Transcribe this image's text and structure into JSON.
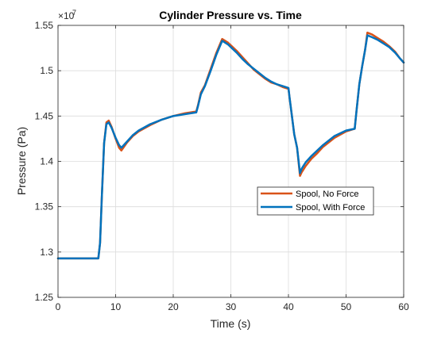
{
  "chart_data": {
    "type": "line",
    "title": "Cylinder Pressure vs. Time",
    "xlabel": "Time (s)",
    "ylabel": "Pressure (Pa)",
    "xlim": [
      0,
      60
    ],
    "ylim": [
      1.25,
      1.55
    ],
    "y_exponent_label": "×10",
    "y_exponent": "7",
    "x_ticks": [
      0,
      10,
      20,
      30,
      40,
      50,
      60
    ],
    "x_tick_labels": [
      "0",
      "10",
      "20",
      "30",
      "40",
      "50",
      "60"
    ],
    "y_ticks": [
      1.25,
      1.3,
      1.35,
      1.4,
      1.45,
      1.5,
      1.55
    ],
    "y_tick_labels": [
      "1.25",
      "1.3",
      "1.35",
      "1.4",
      "1.45",
      "1.5",
      "1.55"
    ],
    "grid": true,
    "legend_position": "lower-right",
    "series": [
      {
        "name": "Spool, No Force",
        "color": "#D95319",
        "points": [
          [
            0,
            1.293
          ],
          [
            2,
            1.293
          ],
          [
            4,
            1.293
          ],
          [
            6,
            1.293
          ],
          [
            7,
            1.293
          ],
          [
            7.3,
            1.31
          ],
          [
            7.6,
            1.36
          ],
          [
            8,
            1.42
          ],
          [
            8.4,
            1.443
          ],
          [
            8.8,
            1.445
          ],
          [
            9.3,
            1.438
          ],
          [
            10,
            1.425
          ],
          [
            10.6,
            1.415
          ],
          [
            11,
            1.412
          ],
          [
            12,
            1.421
          ],
          [
            13,
            1.428
          ],
          [
            14,
            1.433
          ],
          [
            16,
            1.44
          ],
          [
            18,
            1.446
          ],
          [
            20,
            1.45
          ],
          [
            22,
            1.453
          ],
          [
            24,
            1.455
          ],
          [
            24.3,
            1.462
          ],
          [
            24.8,
            1.476
          ],
          [
            25.5,
            1.484
          ],
          [
            26.5,
            1.502
          ],
          [
            27.5,
            1.52
          ],
          [
            28.5,
            1.535
          ],
          [
            29.5,
            1.531
          ],
          [
            30,
            1.528
          ],
          [
            31,
            1.522
          ],
          [
            32,
            1.515
          ],
          [
            33,
            1.508
          ],
          [
            34,
            1.501
          ],
          [
            35,
            1.496
          ],
          [
            36,
            1.491
          ],
          [
            37,
            1.487
          ],
          [
            38,
            1.485
          ],
          [
            39,
            1.482
          ],
          [
            40,
            1.48
          ],
          [
            40.2,
            1.47
          ],
          [
            40.6,
            1.45
          ],
          [
            41,
            1.43
          ],
          [
            41.5,
            1.415
          ],
          [
            42,
            1.384
          ],
          [
            42.3,
            1.388
          ],
          [
            43,
            1.395
          ],
          [
            44,
            1.403
          ],
          [
            45,
            1.409
          ],
          [
            46,
            1.416
          ],
          [
            48,
            1.426
          ],
          [
            50,
            1.433
          ],
          [
            51.5,
            1.436
          ],
          [
            51.8,
            1.455
          ],
          [
            52.3,
            1.485
          ],
          [
            52.8,
            1.505
          ],
          [
            53.3,
            1.523
          ],
          [
            53.7,
            1.542
          ],
          [
            54.5,
            1.54
          ],
          [
            55.5,
            1.536
          ],
          [
            56.5,
            1.532
          ],
          [
            57.5,
            1.527
          ],
          [
            58.5,
            1.521
          ],
          [
            59.3,
            1.514
          ],
          [
            60,
            1.509
          ]
        ]
      },
      {
        "name": "Spool, With Force",
        "color": "#0072BD",
        "points": [
          [
            0,
            1.293
          ],
          [
            2,
            1.293
          ],
          [
            4,
            1.293
          ],
          [
            6,
            1.293
          ],
          [
            7,
            1.293
          ],
          [
            7.3,
            1.31
          ],
          [
            7.6,
            1.36
          ],
          [
            8,
            1.42
          ],
          [
            8.4,
            1.441
          ],
          [
            8.8,
            1.443
          ],
          [
            9.3,
            1.437
          ],
          [
            10,
            1.426
          ],
          [
            10.6,
            1.418
          ],
          [
            11,
            1.415
          ],
          [
            12,
            1.422
          ],
          [
            13,
            1.429
          ],
          [
            14,
            1.434
          ],
          [
            16,
            1.441
          ],
          [
            18,
            1.446
          ],
          [
            20,
            1.45
          ],
          [
            22,
            1.452
          ],
          [
            24,
            1.454
          ],
          [
            24.3,
            1.461
          ],
          [
            24.8,
            1.474
          ],
          [
            25.5,
            1.483
          ],
          [
            26.5,
            1.5
          ],
          [
            27.5,
            1.518
          ],
          [
            28.5,
            1.533
          ],
          [
            29.5,
            1.529
          ],
          [
            30,
            1.526
          ],
          [
            31,
            1.52
          ],
          [
            32,
            1.513
          ],
          [
            33,
            1.507
          ],
          [
            34,
            1.502
          ],
          [
            35,
            1.497
          ],
          [
            36,
            1.492
          ],
          [
            37,
            1.488
          ],
          [
            38,
            1.485
          ],
          [
            39,
            1.483
          ],
          [
            40,
            1.481
          ],
          [
            40.2,
            1.47
          ],
          [
            40.6,
            1.45
          ],
          [
            41,
            1.43
          ],
          [
            41.5,
            1.415
          ],
          [
            42,
            1.387
          ],
          [
            42.3,
            1.392
          ],
          [
            43,
            1.399
          ],
          [
            44,
            1.406
          ],
          [
            45,
            1.412
          ],
          [
            46,
            1.418
          ],
          [
            48,
            1.428
          ],
          [
            50,
            1.434
          ],
          [
            51.5,
            1.436
          ],
          [
            51.8,
            1.455
          ],
          [
            52.3,
            1.485
          ],
          [
            52.8,
            1.505
          ],
          [
            53.3,
            1.523
          ],
          [
            53.7,
            1.539
          ],
          [
            54.5,
            1.537
          ],
          [
            55.5,
            1.534
          ],
          [
            56.5,
            1.53
          ],
          [
            57.5,
            1.526
          ],
          [
            58.5,
            1.52
          ],
          [
            59.3,
            1.514
          ],
          [
            60,
            1.509
          ]
        ]
      }
    ]
  }
}
